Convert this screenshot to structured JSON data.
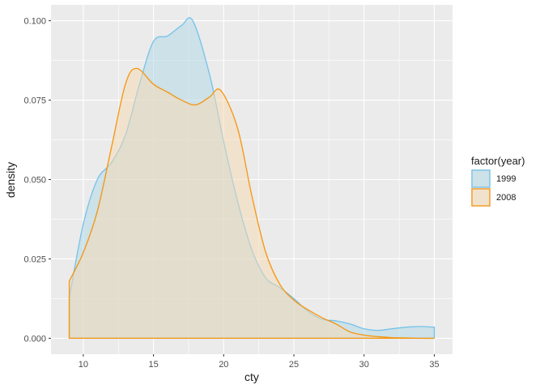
{
  "chart_data": {
    "type": "area",
    "xlabel": "cty",
    "ylabel": "density",
    "xlim": [
      7.7,
      36.3
    ],
    "ylim": [
      -0.005,
      0.105
    ],
    "xticks": [
      "10",
      "15",
      "20",
      "25",
      "30",
      "35"
    ],
    "yticks": [
      "0.000",
      "0.025",
      "0.050",
      "0.075",
      "0.100"
    ],
    "grid": true,
    "legend": {
      "title": "factor(year)",
      "position": "right"
    },
    "series": [
      {
        "name": "1999",
        "line_color": "#74C2EA",
        "fill_color": "#ADD8E6",
        "x": [
          9,
          10,
          11,
          12,
          13,
          14,
          15,
          16,
          17,
          17.8,
          19,
          20,
          21,
          22,
          23,
          24,
          25,
          26,
          27,
          28,
          29,
          30,
          31,
          32,
          33,
          34,
          35
        ],
        "y": [
          0.0128,
          0.036,
          0.05,
          0.0553,
          0.064,
          0.08,
          0.0935,
          0.0952,
          0.0985,
          0.1,
          0.083,
          0.062,
          0.043,
          0.028,
          0.019,
          0.016,
          0.0125,
          0.0085,
          0.006,
          0.0055,
          0.0045,
          0.003,
          0.0025,
          0.003,
          0.0035,
          0.0037,
          0.0035
        ]
      },
      {
        "name": "2008",
        "line_color": "#F5950E",
        "fill_color": "#F7D9B2",
        "x": [
          9,
          10,
          11,
          12,
          13,
          13.8,
          15,
          16,
          17,
          18,
          19,
          19.8,
          21,
          22,
          23,
          24,
          25,
          26,
          27,
          28,
          29,
          30,
          31,
          32,
          33,
          34,
          35
        ],
        "y": [
          0.018,
          0.027,
          0.04,
          0.06,
          0.08,
          0.085,
          0.08,
          0.0775,
          0.075,
          0.0735,
          0.076,
          0.078,
          0.066,
          0.045,
          0.027,
          0.017,
          0.012,
          0.009,
          0.0065,
          0.0045,
          0.002,
          0.001,
          0.0005,
          0.0002,
          0.0001,
          0.0,
          0.0
        ]
      }
    ]
  }
}
